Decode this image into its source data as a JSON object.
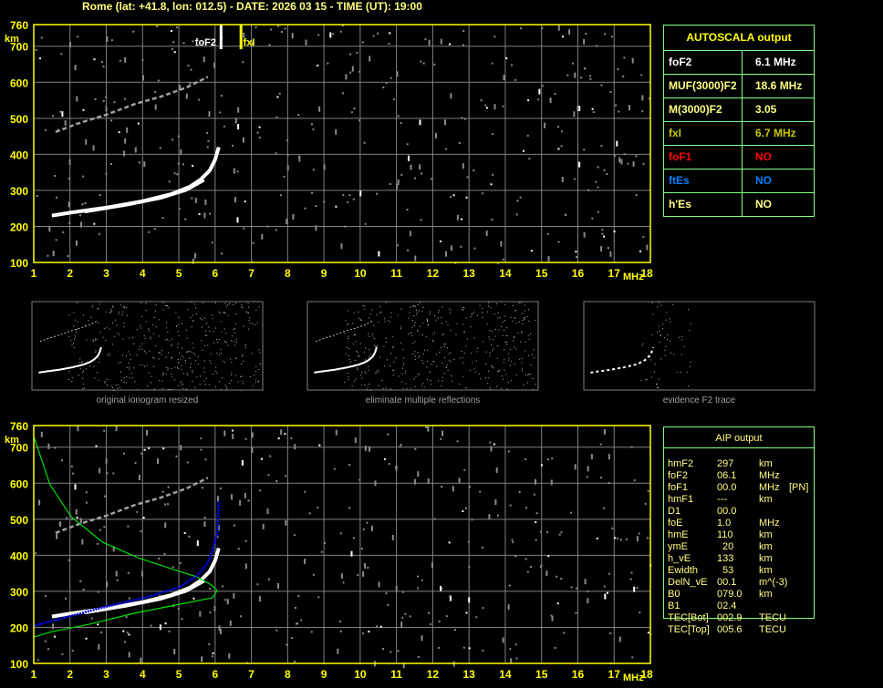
{
  "header": {
    "title": "Rome (lat: +41.8, lon: 012.5) - DATE: 2026 03 15 - TIME (UT): 19:00"
  },
  "colors": {
    "axis": "#ffff00",
    "grid": "#808080",
    "table_border": "#80ff80",
    "text": "#ffff80",
    "trace": "#ffffff",
    "noise": "#8a8a8a",
    "profile": "#00e000",
    "aip_trace": "#0000ff",
    "fxI": "#ffff00"
  },
  "ionogram": {
    "x_unit": "MHz",
    "y_unit": "km",
    "x_ticks": [
      "1",
      "2",
      "3",
      "4",
      "5",
      "6",
      "7",
      "8",
      "9",
      "10",
      "11",
      "12",
      "13",
      "14",
      "15",
      "16",
      "17",
      "18"
    ],
    "y_ticks": [
      "100",
      "200",
      "300",
      "400",
      "500",
      "600",
      "700",
      "760"
    ],
    "xlim": [
      1,
      18
    ],
    "ylim": [
      100,
      760
    ],
    "markers": {
      "foF2_label": "foF2",
      "foF2_value": 6.1,
      "fxI_label": "fxI",
      "fxI_value": 6.7
    },
    "o_trace": [
      [
        1.5,
        230
      ],
      [
        2,
        238
      ],
      [
        3,
        252
      ],
      [
        4,
        270
      ],
      [
        4.8,
        290
      ],
      [
        5.3,
        310
      ],
      [
        5.6,
        330
      ],
      [
        5.85,
        355
      ],
      [
        6.0,
        385
      ],
      [
        6.1,
        420
      ]
    ],
    "x_trace": [
      [
        2.4,
        240
      ],
      [
        3.5,
        258
      ],
      [
        4.5,
        278
      ],
      [
        5.2,
        300
      ],
      [
        5.7,
        328
      ]
    ],
    "second_hop": [
      [
        1.6,
        462
      ],
      [
        2.2,
        485
      ],
      [
        3,
        510
      ],
      [
        3.8,
        540
      ],
      [
        4.5,
        560
      ],
      [
        5.2,
        585
      ],
      [
        5.8,
        615
      ]
    ]
  },
  "autoscala": {
    "title": "AUTOSCALA output",
    "rows": [
      {
        "label": "foF2",
        "value": "6.1 MHz",
        "color": "#ffffff"
      },
      {
        "label": "MUF(3000)F2",
        "value": "18.6 MHz",
        "color": "#ffff80"
      },
      {
        "label": "M(3000)F2",
        "value": "3.05",
        "color": "#ffff80"
      },
      {
        "label": "fxI",
        "value": "6.7 MHz",
        "color": "#c8c800"
      },
      {
        "label": "foF1",
        "value": "NO",
        "color": "#ff0000"
      },
      {
        "label": "ftEs",
        "value": "NO",
        "color": "#0080ff"
      },
      {
        "label": "h'Es",
        "value": "NO",
        "color": "#ffff80"
      }
    ]
  },
  "thumbnails": [
    {
      "caption": "original ionogram resized"
    },
    {
      "caption": "eliminate multiple reflections"
    },
    {
      "caption": "evidence F2 trace"
    }
  ],
  "aip_plot": {
    "profile": [
      [
        1.0,
        730
      ],
      [
        1.45,
        596
      ],
      [
        2.03,
        507
      ],
      [
        2.9,
        436
      ],
      [
        3.9,
        392
      ],
      [
        4.9,
        359
      ],
      [
        5.5,
        340
      ],
      [
        5.9,
        318
      ],
      [
        6.06,
        302
      ],
      [
        5.93,
        282
      ],
      [
        5.02,
        264
      ],
      [
        3.77,
        239
      ],
      [
        2.5,
        208
      ],
      [
        1.5,
        188
      ],
      [
        1.0,
        173
      ]
    ],
    "aip_trace": [
      [
        1.02,
        205
      ],
      [
        1.65,
        222
      ],
      [
        2.9,
        255
      ],
      [
        4.17,
        285
      ],
      [
        5.02,
        312
      ],
      [
        5.52,
        344
      ],
      [
        5.78,
        377
      ],
      [
        5.93,
        412
      ],
      [
        6.06,
        463
      ],
      [
        6.1,
        552
      ]
    ]
  },
  "aip": {
    "title": "AIP output",
    "rows": [
      {
        "name": "hmF2",
        "value": "297",
        "unit": "km",
        "note": ""
      },
      {
        "name": "foF2",
        "value": "06.1",
        "unit": "MHz",
        "note": ""
      },
      {
        "name": "foF1",
        "value": "00.0",
        "unit": "MHz",
        "note": "[PN]"
      },
      {
        "name": "hmF1",
        "value": "---",
        "unit": "km",
        "note": ""
      },
      {
        "name": "D1",
        "value": "00.0",
        "unit": "",
        "note": ""
      },
      {
        "name": "foE",
        "value": "1.0",
        "unit": "MHz",
        "note": ""
      },
      {
        "name": "hmE",
        "value": "110",
        "unit": "km",
        "note": ""
      },
      {
        "name": "ymE",
        "value": "20",
        "unit": "km",
        "note": ""
      },
      {
        "name": "h_vE",
        "value": "133",
        "unit": "km",
        "note": ""
      },
      {
        "name": "Ewidth",
        "value": "53",
        "unit": "km",
        "note": ""
      },
      {
        "name": "DelN_vE",
        "value": "00.1",
        "unit": "m^(-3)",
        "note": ""
      },
      {
        "name": "B0",
        "value": "079.0",
        "unit": "km",
        "note": ""
      },
      {
        "name": "B1",
        "value": "02.4",
        "unit": "",
        "note": ""
      },
      {
        "name": "TEC[Bot]",
        "value": "002.9",
        "unit": "TECU",
        "note": ""
      },
      {
        "name": "TEC[Top]",
        "value": "005.6",
        "unit": "TECU",
        "note": ""
      }
    ]
  }
}
